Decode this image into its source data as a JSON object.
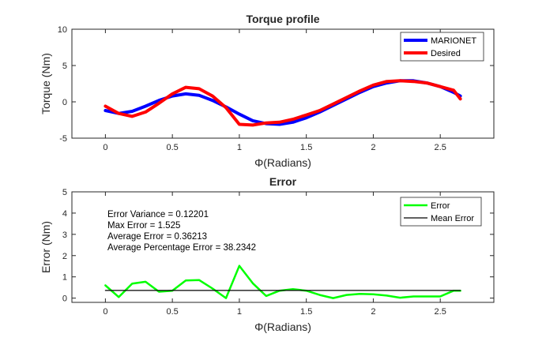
{
  "chart_data": [
    {
      "type": "line",
      "title": "Torque profile",
      "xlabel": "Φ(Radians)",
      "ylabel": "Torque (Nm)",
      "xlim": [
        -0.25,
        2.9
      ],
      "ylim": [
        -5,
        10
      ],
      "xticks": [
        "0",
        "0.5",
        "1",
        "1.5",
        "2",
        "2.5"
      ],
      "yticks": [
        "-5",
        "0",
        "5",
        "10"
      ],
      "legend_position": "top-right",
      "grid": false,
      "series": [
        {
          "name": "MARIONET",
          "color": "#0000ff",
          "x": [
            0,
            0.1,
            0.2,
            0.3,
            0.4,
            0.5,
            0.6,
            0.7,
            0.8,
            0.9,
            1.0,
            1.1,
            1.2,
            1.3,
            1.4,
            1.5,
            1.6,
            1.7,
            1.8,
            1.9,
            2.0,
            2.1,
            2.2,
            2.3,
            2.4,
            2.5,
            2.6,
            2.65
          ],
          "y": [
            -1.2,
            -1.6,
            -1.3,
            -0.6,
            0.2,
            0.8,
            1.1,
            0.9,
            0.2,
            -0.7,
            -1.7,
            -2.6,
            -3.0,
            -3.1,
            -2.8,
            -2.2,
            -1.4,
            -0.5,
            0.4,
            1.3,
            2.1,
            2.6,
            2.9,
            2.9,
            2.6,
            2.1,
            1.3,
            0.8
          ]
        },
        {
          "name": "Desired",
          "color": "#ff0000",
          "x": [
            0,
            0.1,
            0.2,
            0.3,
            0.4,
            0.5,
            0.6,
            0.7,
            0.8,
            0.9,
            1.0,
            1.1,
            1.2,
            1.3,
            1.4,
            1.5,
            1.6,
            1.7,
            1.8,
            1.9,
            2.0,
            2.1,
            2.2,
            2.3,
            2.4,
            2.5,
            2.6,
            2.65
          ],
          "y": [
            -0.6,
            -1.6,
            -2.0,
            -1.4,
            -0.2,
            1.1,
            2.0,
            1.8,
            0.8,
            -0.8,
            -3.1,
            -3.2,
            -2.9,
            -2.8,
            -2.4,
            -1.8,
            -1.2,
            -0.3,
            0.6,
            1.5,
            2.3,
            2.8,
            2.9,
            2.8,
            2.6,
            2.1,
            1.6,
            0.4
          ]
        }
      ]
    },
    {
      "type": "line",
      "title": "Error",
      "xlabel": "Φ(Radians)",
      "ylabel": "Error (Nm)",
      "xlim": [
        -0.25,
        2.9
      ],
      "ylim": [
        -0.2,
        5
      ],
      "xticks": [
        "0",
        "0.5",
        "1",
        "1.5",
        "2",
        "2.5"
      ],
      "yticks": [
        "0",
        "1",
        "2",
        "3",
        "4",
        "5"
      ],
      "legend_position": "top-right",
      "grid": false,
      "annotations": [
        "Error Variance = 0.12201",
        "Max Error = 1.525",
        "Average Error = 0.36213",
        "Average Percentage Error = 38.2342"
      ],
      "series": [
        {
          "name": "Error",
          "color": "#00ff00",
          "x": [
            0,
            0.1,
            0.2,
            0.3,
            0.4,
            0.5,
            0.6,
            0.7,
            0.8,
            0.9,
            1.0,
            1.1,
            1.2,
            1.3,
            1.4,
            1.5,
            1.6,
            1.7,
            1.8,
            1.9,
            2.0,
            2.1,
            2.2,
            2.3,
            2.4,
            2.5,
            2.6,
            2.65
          ],
          "y": [
            0.6,
            0.05,
            0.68,
            0.77,
            0.3,
            0.35,
            0.83,
            0.85,
            0.45,
            0.0,
            1.52,
            0.7,
            0.1,
            0.35,
            0.42,
            0.35,
            0.15,
            0.0,
            0.15,
            0.2,
            0.18,
            0.12,
            0.02,
            0.08,
            0.08,
            0.08,
            0.35,
            0.35
          ]
        },
        {
          "name": "Mean Error",
          "color": "#000000",
          "x": [
            0,
            2.65
          ],
          "y": [
            0.36213,
            0.36213
          ]
        }
      ]
    }
  ]
}
